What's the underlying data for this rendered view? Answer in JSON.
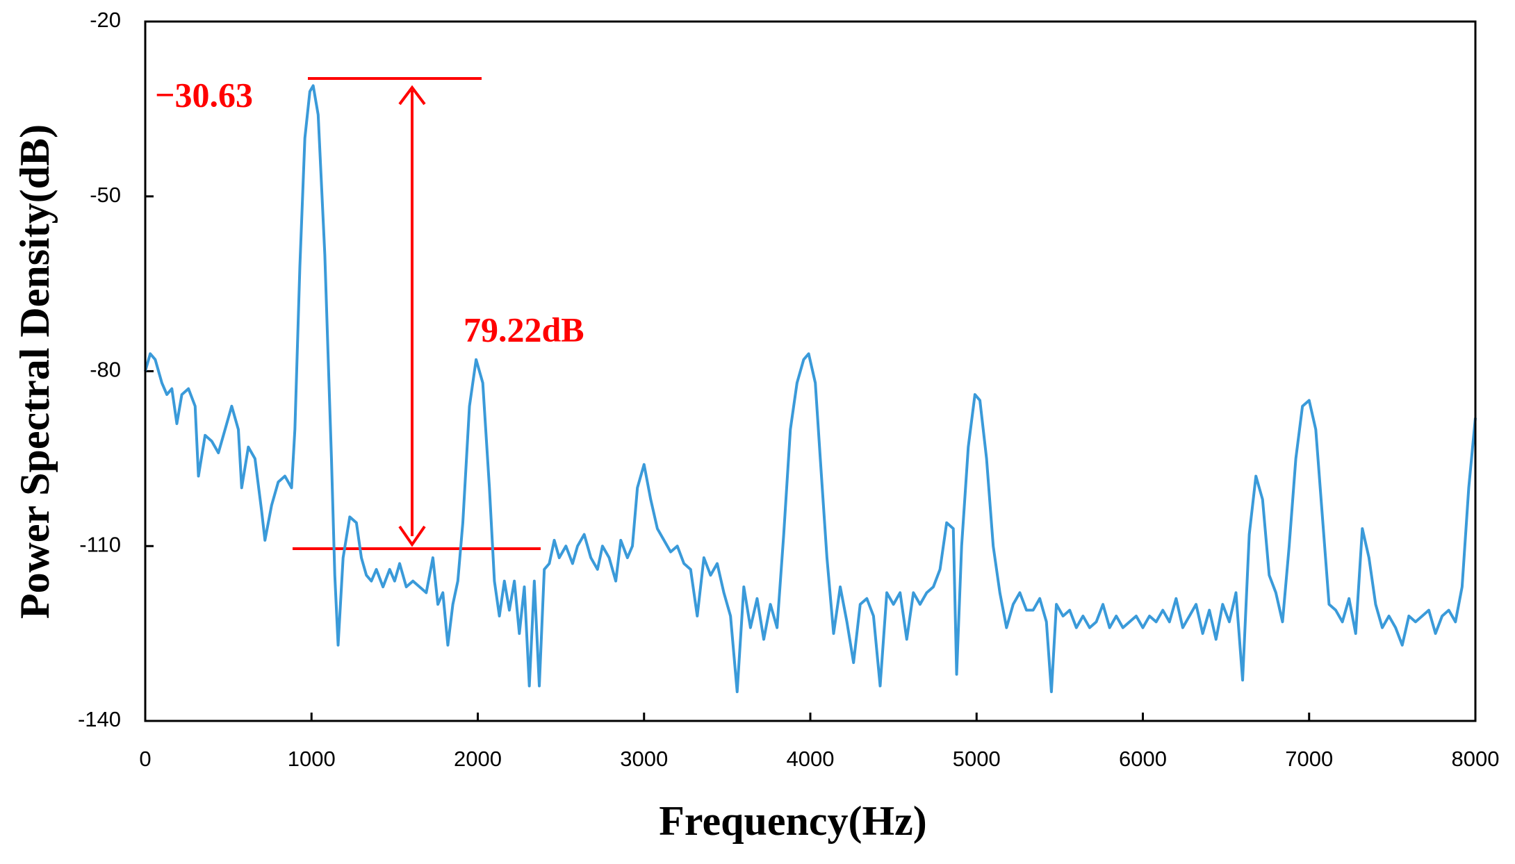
{
  "chart_data": {
    "type": "line",
    "x_label": "Frequency(Hz)",
    "y_label": "Power Spectral Density(dB)",
    "annotations": {
      "peak_label": "−30.63",
      "diff_label": "79.22dB"
    },
    "xlim": [
      0,
      8000
    ],
    "xticks": [
      0,
      1000,
      2000,
      3000,
      4000,
      5000,
      6000,
      7000,
      8000
    ],
    "ylim": [
      -140,
      -20
    ],
    "yticks": [
      -20,
      -50,
      -80,
      -110,
      -140
    ],
    "series": [
      {
        "color": "#3a9ad9",
        "x": [
          0,
          30,
          60,
          100,
          130,
          160,
          190,
          220,
          260,
          300,
          320,
          360,
          400,
          440,
          480,
          520,
          560,
          580,
          620,
          660,
          700,
          720,
          760,
          800,
          840,
          880,
          900,
          930,
          960,
          990,
          1010,
          1040,
          1080,
          1120,
          1140,
          1160,
          1190,
          1230,
          1270,
          1300,
          1330,
          1360,
          1390,
          1430,
          1470,
          1500,
          1530,
          1570,
          1610,
          1650,
          1690,
          1730,
          1760,
          1790,
          1820,
          1850,
          1880,
          1910,
          1950,
          1990,
          2030,
          2070,
          2100,
          2130,
          2160,
          2190,
          2220,
          2250,
          2280,
          2310,
          2340,
          2370,
          2400,
          2430,
          2460,
          2490,
          2530,
          2570,
          2600,
          2640,
          2680,
          2720,
          2750,
          2790,
          2830,
          2860,
          2900,
          2930,
          2960,
          3000,
          3040,
          3080,
          3120,
          3160,
          3200,
          3240,
          3280,
          3320,
          3360,
          3400,
          3440,
          3480,
          3520,
          3560,
          3600,
          3640,
          3680,
          3720,
          3760,
          3800,
          3840,
          3880,
          3920,
          3960,
          3990,
          4030,
          4060,
          4100,
          4140,
          4180,
          4220,
          4260,
          4300,
          4340,
          4380,
          4420,
          4460,
          4500,
          4540,
          4580,
          4620,
          4660,
          4700,
          4740,
          4780,
          4820,
          4860,
          4880,
          4910,
          4950,
          4990,
          5020,
          5060,
          5100,
          5140,
          5180,
          5220,
          5260,
          5300,
          5340,
          5380,
          5420,
          5450,
          5480,
          5520,
          5560,
          5600,
          5640,
          5680,
          5720,
          5760,
          5800,
          5840,
          5880,
          5920,
          5960,
          6000,
          6040,
          6080,
          6120,
          6160,
          6200,
          6240,
          6280,
          6320,
          6360,
          6400,
          6440,
          6480,
          6520,
          6560,
          6600,
          6640,
          6680,
          6720,
          6760,
          6800,
          6840,
          6880,
          6920,
          6960,
          7000,
          7040,
          7080,
          7120,
          7160,
          7200,
          7240,
          7280,
          7320,
          7360,
          7400,
          7440,
          7480,
          7520,
          7560,
          7600,
          7640,
          7680,
          7720,
          7760,
          7800,
          7840,
          7880,
          7920,
          7960,
          8000
        ],
        "values": [
          -80,
          -77,
          -78,
          -82,
          -84,
          -83,
          -89,
          -84,
          -83,
          -86,
          -98,
          -91,
          -92,
          -94,
          -90,
          -86,
          -90,
          -100,
          -93,
          -95,
          -104,
          -109,
          -103,
          -99,
          -98,
          -100,
          -90,
          -62,
          -40,
          -32,
          -31,
          -36,
          -60,
          -95,
          -115,
          -127,
          -112,
          -105,
          -106,
          -112,
          -115,
          -116,
          -114,
          -117,
          -114,
          -116,
          -113,
          -117,
          -116,
          -117,
          -118,
          -112,
          -120,
          -118,
          -127,
          -120,
          -116,
          -106,
          -86,
          -78,
          -82,
          -100,
          -116,
          -122,
          -116,
          -121,
          -116,
          -125,
          -117,
          -134,
          -116,
          -134,
          -114,
          -113,
          -109,
          -112,
          -110,
          -113,
          -110,
          -108,
          -112,
          -114,
          -110,
          -112,
          -116,
          -109,
          -112,
          -110,
          -100,
          -96,
          -102,
          -107,
          -109,
          -111,
          -110,
          -113,
          -114,
          -122,
          -112,
          -115,
          -113,
          -118,
          -122,
          -135,
          -117,
          -124,
          -119,
          -126,
          -120,
          -124,
          -108,
          -90,
          -82,
          -78,
          -77,
          -82,
          -95,
          -112,
          -125,
          -117,
          -123,
          -130,
          -120,
          -119,
          -122,
          -134,
          -118,
          -120,
          -118,
          -126,
          -118,
          -120,
          -118,
          -117,
          -114,
          -106,
          -107,
          -132,
          -110,
          -93,
          -84,
          -85,
          -95,
          -110,
          -118,
          -124,
          -120,
          -118,
          -121,
          -121,
          -119,
          -123,
          -135,
          -120,
          -122,
          -121,
          -124,
          -122,
          -124,
          -123,
          -120,
          -124,
          -122,
          -124,
          -123,
          -122,
          -124,
          -122,
          -123,
          -121,
          -123,
          -119,
          -124,
          -122,
          -120,
          -125,
          -121,
          -126,
          -120,
          -123,
          -118,
          -133,
          -108,
          -98,
          -102,
          -115,
          -118,
          -123,
          -110,
          -95,
          -86,
          -85,
          -90,
          -105,
          -120,
          -121,
          -123,
          -119,
          -125,
          -107,
          -112,
          -120,
          -124,
          -122,
          -124,
          -127,
          -122,
          -123,
          -122,
          -121,
          -125,
          -122,
          -121,
          -123,
          -117,
          -100,
          -88
        ]
      }
    ]
  }
}
